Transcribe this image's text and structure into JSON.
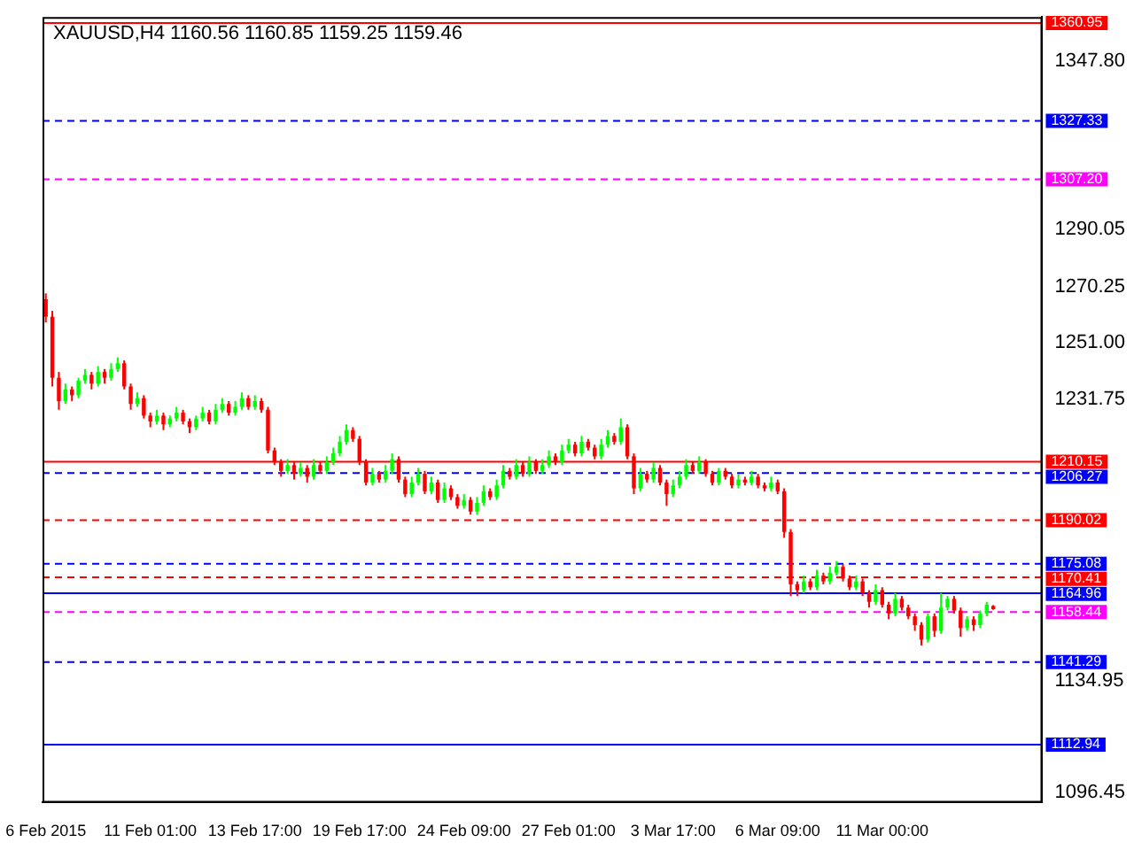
{
  "chart_data": {
    "type": "candlestick",
    "title": "XAUUSD,H4 1160.56 1160.85 1159.25 1159.46",
    "categories": [
      "6 Feb 2015",
      null,
      null,
      null,
      null,
      null,
      null,
      null,
      null,
      null,
      null,
      null,
      null,
      null,
      null,
      null,
      "11 Feb 01:00",
      null,
      null,
      null,
      null,
      null,
      null,
      null,
      null,
      null,
      null,
      null,
      null,
      null,
      null,
      null,
      "13 Feb 17:00",
      null,
      null,
      null,
      null,
      null,
      null,
      null,
      null,
      null,
      null,
      null,
      null,
      null,
      null,
      null,
      "19 Feb 17:00",
      null,
      null,
      null,
      null,
      null,
      null,
      null,
      null,
      null,
      null,
      null,
      null,
      null,
      null,
      null,
      "24 Feb 09:00",
      null,
      null,
      null,
      null,
      null,
      null,
      null,
      null,
      null,
      null,
      null,
      null,
      null,
      null,
      null,
      "27 Feb 01:00",
      null,
      null,
      null,
      null,
      null,
      null,
      null,
      null,
      null,
      null,
      null,
      null,
      null,
      null,
      null,
      "3 Mar 17:00",
      null,
      null,
      null,
      null,
      null,
      null,
      null,
      null,
      null,
      null,
      null,
      null,
      null,
      null,
      null,
      "6 Mar 09:00",
      null,
      null,
      null,
      null,
      null,
      null,
      null,
      null,
      null,
      null,
      null,
      null,
      null,
      null,
      null,
      "11 Mar 00:00",
      null,
      null,
      null,
      null,
      null,
      null,
      null,
      null,
      null,
      null,
      null,
      null,
      null,
      null,
      null,
      null,
      null,
      null,
      null,
      null,
      null,
      null,
      null,
      null
    ],
    "ohlc": [
      [
        1266,
        1268,
        1258,
        1260
      ],
      [
        1260,
        1262,
        1236,
        1239
      ],
      [
        1239,
        1241,
        1228,
        1231
      ],
      [
        1231,
        1237,
        1230,
        1235
      ],
      [
        1235,
        1236,
        1231,
        1233
      ],
      [
        1233,
        1239,
        1232,
        1238
      ],
      [
        1238,
        1242,
        1237,
        1240
      ],
      [
        1240,
        1241,
        1235,
        1237
      ],
      [
        1237,
        1243,
        1236,
        1241
      ],
      [
        1241,
        1242,
        1237,
        1239
      ],
      [
        1239,
        1244,
        1238,
        1242
      ],
      [
        1242,
        1246,
        1241,
        1244
      ],
      [
        1244,
        1245,
        1235,
        1236
      ],
      [
        1236,
        1237,
        1228,
        1230
      ],
      [
        1230,
        1234,
        1229,
        1232
      ],
      [
        1232,
        1233,
        1225,
        1226
      ],
      [
        1226,
        1227,
        1222,
        1224
      ],
      [
        1224,
        1228,
        1223,
        1226
      ],
      [
        1226,
        1227,
        1221,
        1223
      ],
      [
        1223,
        1226,
        1222,
        1225
      ],
      [
        1225,
        1229,
        1224,
        1227
      ],
      [
        1227,
        1228,
        1223,
        1224
      ],
      [
        1224,
        1225,
        1220,
        1222
      ],
      [
        1222,
        1226,
        1221,
        1225
      ],
      [
        1225,
        1229,
        1224,
        1227
      ],
      [
        1227,
        1228,
        1223,
        1224
      ],
      [
        1224,
        1230,
        1223,
        1228
      ],
      [
        1228,
        1232,
        1227,
        1230
      ],
      [
        1230,
        1231,
        1226,
        1227
      ],
      [
        1227,
        1231,
        1226,
        1229
      ],
      [
        1229,
        1234,
        1228,
        1232
      ],
      [
        1232,
        1233,
        1228,
        1229
      ],
      [
        1229,
        1233,
        1228,
        1231
      ],
      [
        1231,
        1232,
        1227,
        1228
      ],
      [
        1228,
        1229,
        1213,
        1214
      ],
      [
        1214,
        1215,
        1209,
        1210
      ],
      [
        1210,
        1211,
        1205,
        1207
      ],
      [
        1207,
        1211,
        1206,
        1209
      ],
      [
        1209,
        1210,
        1204,
        1206
      ],
      [
        1206,
        1210,
        1205,
        1208
      ],
      [
        1208,
        1209,
        1203,
        1205
      ],
      [
        1205,
        1211,
        1204,
        1209
      ],
      [
        1209,
        1210,
        1206,
        1207
      ],
      [
        1207,
        1212,
        1206,
        1210
      ],
      [
        1210,
        1215,
        1209,
        1213
      ],
      [
        1213,
        1219,
        1212,
        1217
      ],
      [
        1217,
        1223,
        1216,
        1221
      ],
      [
        1221,
        1222,
        1217,
        1218
      ],
      [
        1218,
        1219,
        1209,
        1210
      ],
      [
        1210,
        1211,
        1202,
        1203
      ],
      [
        1203,
        1208,
        1202,
        1206
      ],
      [
        1206,
        1207,
        1203,
        1204
      ],
      [
        1204,
        1209,
        1203,
        1207
      ],
      [
        1207,
        1213,
        1206,
        1211
      ],
      [
        1211,
        1212,
        1203,
        1204
      ],
      [
        1204,
        1205,
        1198,
        1199
      ],
      [
        1199,
        1205,
        1198,
        1203
      ],
      [
        1203,
        1208,
        1202,
        1206
      ],
      [
        1206,
        1207,
        1199,
        1200
      ],
      [
        1200,
        1205,
        1199,
        1203
      ],
      [
        1203,
        1204,
        1196,
        1197
      ],
      [
        1197,
        1203,
        1196,
        1201
      ],
      [
        1201,
        1202,
        1197,
        1198
      ],
      [
        1198,
        1199,
        1194,
        1195
      ],
      [
        1195,
        1199,
        1194,
        1197
      ],
      [
        1197,
        1198,
        1192,
        1193
      ],
      [
        1193,
        1198,
        1192,
        1196
      ],
      [
        1196,
        1202,
        1195,
        1200
      ],
      [
        1200,
        1201,
        1197,
        1198
      ],
      [
        1198,
        1204,
        1197,
        1202
      ],
      [
        1202,
        1209,
        1201,
        1207
      ],
      [
        1207,
        1208,
        1204,
        1205
      ],
      [
        1205,
        1211,
        1204,
        1209
      ],
      [
        1209,
        1210,
        1205,
        1206
      ],
      [
        1206,
        1212,
        1205,
        1210
      ],
      [
        1210,
        1211,
        1206,
        1207
      ],
      [
        1207,
        1211,
        1206,
        1209
      ],
      [
        1209,
        1214,
        1208,
        1212
      ],
      [
        1212,
        1213,
        1209,
        1210
      ],
      [
        1210,
        1216,
        1209,
        1214
      ],
      [
        1214,
        1218,
        1213,
        1216
      ],
      [
        1216,
        1217,
        1212,
        1213
      ],
      [
        1213,
        1219,
        1212,
        1217
      ],
      [
        1217,
        1218,
        1214,
        1215
      ],
      [
        1215,
        1216,
        1211,
        1212
      ],
      [
        1212,
        1218,
        1211,
        1216
      ],
      [
        1216,
        1221,
        1215,
        1219
      ],
      [
        1219,
        1220,
        1216,
        1217
      ],
      [
        1217,
        1225,
        1216,
        1222
      ],
      [
        1222,
        1223,
        1211,
        1212
      ],
      [
        1212,
        1213,
        1199,
        1201
      ],
      [
        1201,
        1208,
        1200,
        1206
      ],
      [
        1206,
        1207,
        1203,
        1204
      ],
      [
        1204,
        1210,
        1203,
        1208
      ],
      [
        1208,
        1209,
        1202,
        1203
      ],
      [
        1203,
        1204,
        1195,
        1199
      ],
      [
        1199,
        1204,
        1198,
        1202
      ],
      [
        1202,
        1207,
        1201,
        1205
      ],
      [
        1205,
        1211,
        1204,
        1209
      ],
      [
        1209,
        1210,
        1206,
        1207
      ],
      [
        1207,
        1212,
        1206,
        1210
      ],
      [
        1210,
        1211,
        1205,
        1206
      ],
      [
        1206,
        1207,
        1202,
        1203
      ],
      [
        1203,
        1208,
        1202,
        1207
      ],
      [
        1207,
        1208,
        1204,
        1205
      ],
      [
        1205,
        1206,
        1201,
        1202
      ],
      [
        1202,
        1206,
        1201,
        1204
      ],
      [
        1204,
        1205,
        1202,
        1203
      ],
      [
        1203,
        1207,
        1202,
        1205
      ],
      [
        1205,
        1206,
        1201,
        1202
      ],
      [
        1202,
        1203,
        1200,
        1201
      ],
      [
        1201,
        1205,
        1200,
        1203
      ],
      [
        1203,
        1204,
        1199,
        1200
      ],
      [
        1200,
        1201,
        1184,
        1186
      ],
      [
        1186,
        1187,
        1164,
        1168
      ],
      [
        1168,
        1169,
        1164,
        1166
      ],
      [
        1166,
        1171,
        1165,
        1169
      ],
      [
        1169,
        1170,
        1166,
        1167
      ],
      [
        1167,
        1173,
        1166,
        1171
      ],
      [
        1171,
        1172,
        1168,
        1169
      ],
      [
        1169,
        1174,
        1168,
        1172
      ],
      [
        1172,
        1176,
        1171,
        1174
      ],
      [
        1174,
        1175,
        1169,
        1170
      ],
      [
        1170,
        1171,
        1166,
        1167
      ],
      [
        1167,
        1171,
        1166,
        1169
      ],
      [
        1169,
        1170,
        1164,
        1165
      ],
      [
        1165,
        1166,
        1160,
        1162
      ],
      [
        1162,
        1168,
        1161,
        1166
      ],
      [
        1166,
        1167,
        1160,
        1161
      ],
      [
        1161,
        1162,
        1156,
        1158
      ],
      [
        1158,
        1165,
        1157,
        1163
      ],
      [
        1163,
        1164,
        1159,
        1160
      ],
      [
        1160,
        1161,
        1156,
        1157
      ],
      [
        1157,
        1158,
        1152,
        1154
      ],
      [
        1154,
        1155,
        1147,
        1149
      ],
      [
        1149,
        1158,
        1148,
        1157
      ],
      [
        1157,
        1158,
        1150,
        1152
      ],
      [
        1152,
        1165,
        1151,
        1160
      ],
      [
        1160,
        1164,
        1159,
        1163
      ],
      [
        1163,
        1164,
        1158,
        1159
      ],
      [
        1159,
        1160,
        1150,
        1153
      ],
      [
        1153,
        1157,
        1152,
        1156
      ],
      [
        1156,
        1157,
        1152,
        1154
      ],
      [
        1154,
        1159,
        1153,
        1158
      ],
      [
        1158,
        1162,
        1157,
        1161
      ],
      [
        1160.56,
        1160.85,
        1159.25,
        1159.46
      ],
      null,
      null,
      null,
      null,
      null,
      null,
      null
    ],
    "colors": [
      "#ff0000",
      "#ff0000",
      "#ff0000",
      "#00ff00",
      "#ff0000",
      "#00ff00",
      "#00ff00",
      "#ff0000",
      "#00ff00",
      "#ff0000",
      "#00ff00",
      "#00ff00",
      "#ff0000",
      "#ff0000",
      "#00ff00",
      "#ff0000",
      "#ff0000",
      "#00ff00",
      "#ff0000",
      "#00ff00",
      "#00ff00",
      "#ff0000",
      "#ff0000",
      "#00ff00",
      "#00ff00",
      "#ff0000",
      "#00ff00",
      "#00ff00",
      "#ff0000",
      "#00ff00",
      "#00ff00",
      "#ff0000",
      "#00ff00",
      "#ff0000",
      "#ff0000",
      "#ff0000",
      "#ff0000",
      "#00ff00",
      "#ff0000",
      "#00ff00",
      "#ff0000",
      "#00ff00",
      "#ff0000",
      "#00ff00",
      "#00ff00",
      "#00ff00",
      "#00ff00",
      "#ff0000",
      "#ff0000",
      "#ff0000",
      "#00ff00",
      "#ff0000",
      "#00ff00",
      "#00ff00",
      "#ff0000",
      "#ff0000",
      "#00ff00",
      "#00ff00",
      "#ff0000",
      "#00ff00",
      "#ff0000",
      "#00ff00",
      "#ff0000",
      "#ff0000",
      "#00ff00",
      "#ff0000",
      "#00ff00",
      "#00ff00",
      "#ff0000",
      "#00ff00",
      "#00ff00",
      "#ff0000",
      "#00ff00",
      "#ff0000",
      "#00ff00",
      "#ff0000",
      "#00ff00",
      "#00ff00",
      "#ff0000",
      "#00ff00",
      "#00ff00",
      "#ff0000",
      "#00ff00",
      "#ff0000",
      "#ff0000",
      "#00ff00",
      "#00ff00",
      "#ff0000",
      "#00ff00",
      "#ff0000",
      "#ff0000",
      "#00ff00",
      "#ff0000",
      "#00ff00",
      "#ff0000",
      "#ff0000",
      "#00ff00",
      "#00ff00",
      "#00ff00",
      "#ff0000",
      "#00ff00",
      "#ff0000",
      "#ff0000",
      "#00ff00",
      "#ff0000",
      "#ff0000",
      "#00ff00",
      "#ff0000",
      "#00ff00",
      "#ff0000",
      "#ff0000",
      "#00ff00",
      "#ff0000",
      "#ff0000",
      "#ff0000",
      "#ff0000",
      "#00ff00",
      "#ff0000",
      "#00ff00",
      "#ff0000",
      "#00ff00",
      "#00ff00",
      "#ff0000",
      "#ff0000",
      "#00ff00",
      "#ff0000",
      "#ff0000",
      "#00ff00",
      "#ff0000",
      "#ff0000",
      "#00ff00",
      "#ff0000",
      "#ff0000",
      "#ff0000",
      "#ff0000",
      "#00ff00",
      "#ff0000",
      "#00ff00",
      "#00ff00",
      "#ff0000",
      "#ff0000",
      "#00ff00",
      "#ff0000",
      "#00ff00",
      "#00ff00",
      "#ff0000",
      null,
      null,
      null,
      null,
      null,
      null,
      null
    ],
    "ylim": [
      1093,
      1363
    ],
    "yticks": [
      {
        "value": 1096.45,
        "label": "1096.45"
      },
      {
        "value": 1134.95,
        "label": "1134.95"
      },
      {
        "value": 1231.75,
        "label": "1231.75"
      },
      {
        "value": 1251,
        "label": "1251.00"
      },
      {
        "value": 1270.25,
        "label": "1270.25"
      },
      {
        "value": 1290.05,
        "label": "1290.05"
      },
      {
        "value": 1347.8,
        "label": "1347.80"
      }
    ],
    "ref_lines": [
      {
        "axis": "y",
        "value": 1360.95,
        "label": "1360.95",
        "color": "#ff0000",
        "line_style": "solid"
      },
      {
        "axis": "y",
        "value": 1327.33,
        "label": "1327.33",
        "color": "#0000ff",
        "line_style": "dashed"
      },
      {
        "axis": "y",
        "value": 1307.2,
        "label": "1307.20",
        "color": "#ff00ff",
        "line_style": "dashed"
      },
      {
        "axis": "y",
        "value": 1210.15,
        "label": "1210.15",
        "color": "#ff0000",
        "line_style": "solid"
      },
      {
        "axis": "y",
        "value": 1206.27,
        "label": "1206.27",
        "color": "#0000ff",
        "line_style": "dashed"
      },
      {
        "axis": "y",
        "value": 1190.02,
        "label": "1190.02",
        "color": "#ff0000",
        "line_style": "dashed"
      },
      {
        "axis": "y",
        "value": 1175.08,
        "label": "1175.08",
        "color": "#0000ff",
        "line_style": "dashed"
      },
      {
        "axis": "y",
        "value": 1170.41,
        "label": "1170.41",
        "color": "#ff0000",
        "line_style": "dashed"
      },
      {
        "axis": "y",
        "value": 1164.96,
        "label": "1164.96",
        "color": "#0000ff",
        "line_style": "solid"
      },
      {
        "axis": "y",
        "value": 1158.44,
        "label": "1158.44",
        "color": "#ff00ff",
        "line_style": "dashed"
      },
      {
        "axis": "y",
        "value": 1141.29,
        "label": "1141.29",
        "color": "#0000ff",
        "line_style": "dashed"
      },
      {
        "axis": "y",
        "value": 1112.94,
        "label": "1112.94",
        "color": "#0000ff",
        "line_style": "solid"
      }
    ],
    "grid": false,
    "legend": false
  }
}
